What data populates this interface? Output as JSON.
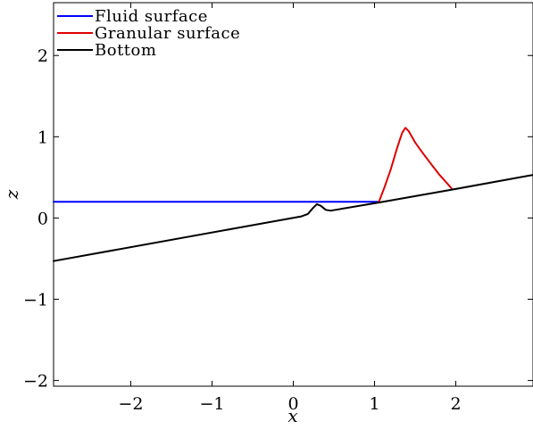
{
  "chart_data": {
    "type": "line",
    "xlabel": "x",
    "ylabel": "z",
    "xlim": [
      -2.95,
      2.95
    ],
    "ylim": [
      -2.07,
      2.65
    ],
    "xticks": [
      -2,
      -1,
      0,
      1,
      2
    ],
    "yticks": [
      -2,
      -1,
      0,
      1,
      2
    ],
    "xtick_labels": [
      "−2",
      "−1",
      "0",
      "1",
      "2"
    ],
    "ytick_labels": [
      "−2",
      "−1",
      "0",
      "1",
      "2"
    ],
    "grid": false,
    "legend_position": "top-left",
    "series": [
      {
        "name": "Fluid surface",
        "color": "#0000ff",
        "x": [
          -2.95,
          1.05
        ],
        "y": [
          0.2,
          0.2
        ]
      },
      {
        "name": "Granular surface",
        "color": "#dd0000",
        "x": [
          1.05,
          1.12,
          1.2,
          1.28,
          1.34,
          1.38,
          1.42,
          1.5,
          1.6,
          1.7,
          1.8,
          1.9,
          1.96
        ],
        "y": [
          0.19,
          0.37,
          0.6,
          0.87,
          1.05,
          1.11,
          1.07,
          0.93,
          0.79,
          0.66,
          0.53,
          0.42,
          0.35
        ]
      },
      {
        "name": "Bottom",
        "color": "#000000",
        "x": [
          -2.95,
          0.1,
          0.18,
          0.24,
          0.29,
          0.34,
          0.4,
          0.46,
          0.52,
          1.05,
          1.96,
          2.95
        ],
        "y": [
          -0.53,
          0.02,
          0.05,
          0.12,
          0.17,
          0.15,
          0.1,
          0.09,
          0.1,
          0.19,
          0.35,
          0.53
        ]
      }
    ]
  }
}
